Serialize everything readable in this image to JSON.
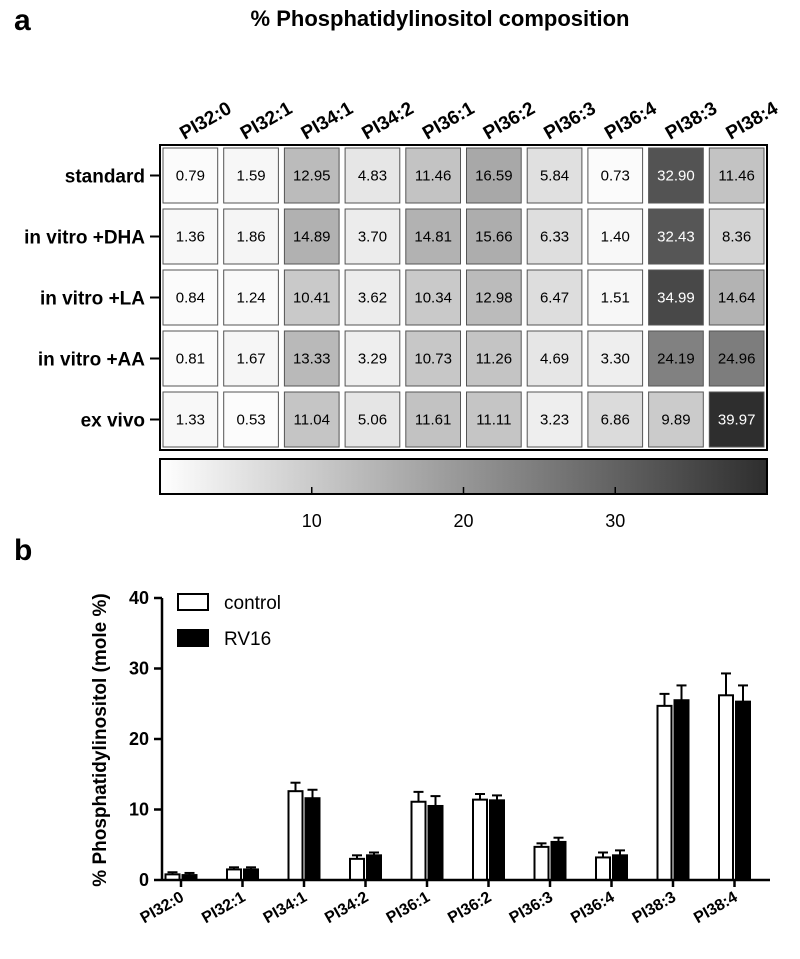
{
  "panel_a_label": "a",
  "panel_b_label": "b",
  "chart_data": [
    {
      "type": "heatmap",
      "title": "% Phosphatidylinositol composition",
      "columns": [
        "PI32:0",
        "PI32:1",
        "PI34:1",
        "PI34:2",
        "PI36:1",
        "PI36:2",
        "PI36:3",
        "PI36:4",
        "PI38:3",
        "PI38:4"
      ],
      "rows": [
        "standard",
        "in vitro +DHA",
        "in vitro +LA",
        "in vitro +AA",
        "ex vivo"
      ],
      "values": [
        [
          0.79,
          1.59,
          12.95,
          4.83,
          11.46,
          16.59,
          5.84,
          0.73,
          32.9,
          11.46
        ],
        [
          1.36,
          1.86,
          14.89,
          3.7,
          14.81,
          15.66,
          6.33,
          1.4,
          32.43,
          8.36
        ],
        [
          0.84,
          1.24,
          10.41,
          3.62,
          10.34,
          12.98,
          6.47,
          1.51,
          34.99,
          14.64
        ],
        [
          0.81,
          1.67,
          13.33,
          3.29,
          10.73,
          11.26,
          4.69,
          3.3,
          24.19,
          24.96
        ],
        [
          1.33,
          0.53,
          11.04,
          5.06,
          11.61,
          11.11,
          3.23,
          6.86,
          9.89,
          39.97
        ]
      ],
      "value_labels": [
        [
          "0.79",
          "1.59",
          "12.95",
          "4.83",
          "11.46",
          "16.59",
          "5.84",
          "0.73",
          "32.90",
          "11.46"
        ],
        [
          "1.36",
          "1.86",
          "14.89",
          "3.70",
          "14.81",
          "15.66",
          "6.33",
          "1.40",
          "32.43",
          "8.36"
        ],
        [
          "0.84",
          "1.24",
          "10.41",
          "3.62",
          "10.34",
          "12.98",
          "6.47",
          "1.51",
          "34.99",
          "14.64"
        ],
        [
          "0.81",
          "1.67",
          "13.33",
          "3.29",
          "10.73",
          "11.26",
          "4.69",
          "3.30",
          "24.19",
          "24.96"
        ],
        [
          "1.33",
          "0.53",
          "11.04",
          "5.06",
          "11.61",
          "11.11",
          "3.23",
          "6.86",
          "9.89",
          "39.97"
        ]
      ],
      "colorbar": {
        "range": [
          0,
          40
        ],
        "ticks": [
          10,
          20,
          30
        ],
        "tick_labels": [
          "10",
          "20",
          "30"
        ],
        "color_low": "#ffffff",
        "color_high": "#2e2e2e"
      }
    },
    {
      "type": "bar",
      "title": "",
      "xlabel": "",
      "ylabel": "% Phosphatidylinositol (mole %)",
      "ylim": [
        0,
        40
      ],
      "yticks": [
        0,
        10,
        20,
        30,
        40
      ],
      "ytick_labels": [
        "0",
        "10",
        "20",
        "30",
        "40"
      ],
      "categories": [
        "PI32:0",
        "PI32:1",
        "PI34:1",
        "PI34:2",
        "PI36:1",
        "PI36:2",
        "PI36:3",
        "PI36:4",
        "PI38:3",
        "PI38:4"
      ],
      "series": [
        {
          "name": "control",
          "fill": "#ffffff",
          "values": [
            0.8,
            1.5,
            12.6,
            3.0,
            11.1,
            11.4,
            4.7,
            3.2,
            24.7,
            26.2
          ],
          "errors": [
            0.3,
            0.3,
            1.2,
            0.5,
            1.4,
            0.8,
            0.5,
            0.7,
            1.7,
            3.1
          ]
        },
        {
          "name": "RV16",
          "fill": "#000000",
          "values": [
            0.7,
            1.5,
            11.6,
            3.5,
            10.5,
            11.3,
            5.4,
            3.5,
            25.5,
            25.3
          ],
          "errors": [
            0.3,
            0.3,
            1.2,
            0.4,
            1.4,
            0.7,
            0.6,
            0.7,
            2.1,
            2.3
          ]
        }
      ],
      "legend_position": "top-left"
    }
  ]
}
